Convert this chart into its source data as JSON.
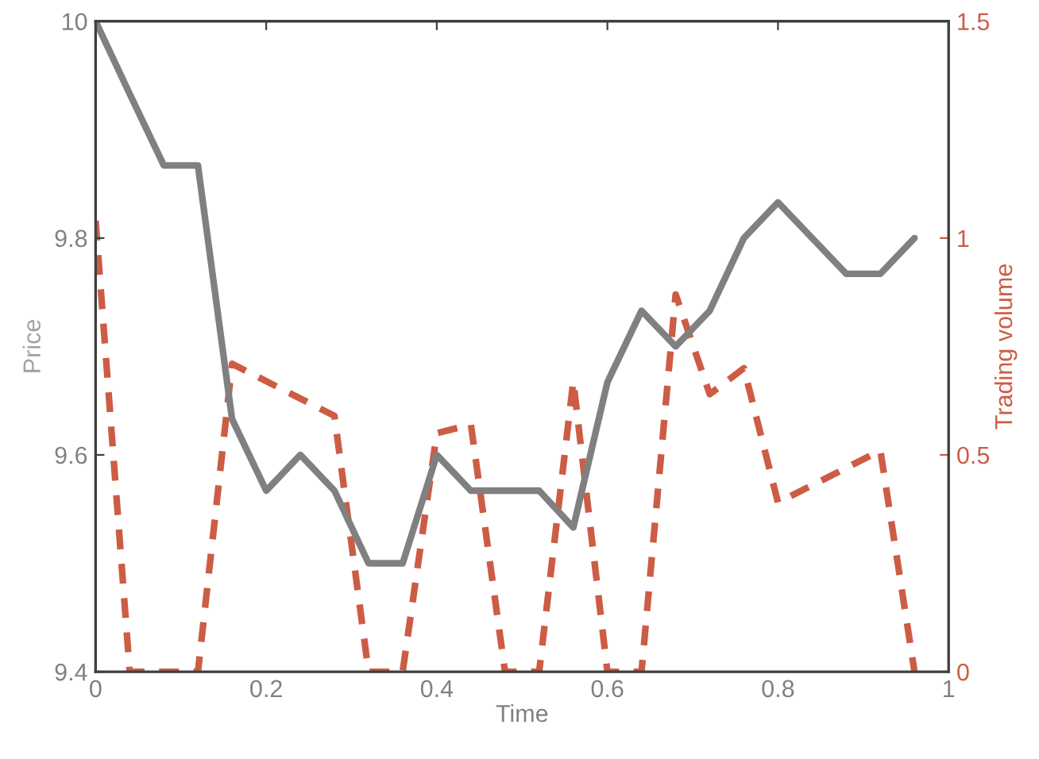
{
  "chart_data": {
    "type": "line",
    "xlabel": "Time",
    "ylabel": "Price",
    "y2label": "Trading volume",
    "x": [
      0,
      0.04,
      0.08,
      0.12,
      0.16,
      0.2,
      0.24,
      0.28,
      0.32,
      0.36,
      0.4,
      0.44,
      0.48,
      0.52,
      0.56,
      0.6,
      0.64,
      0.68,
      0.72,
      0.76,
      0.8,
      0.84,
      0.88,
      0.92,
      0.96
    ],
    "series": [
      {
        "color": "#808080",
        "line_style": "solid",
        "values": [
          10,
          9.933,
          9.867,
          9.867,
          9.633,
          9.567,
          9.6,
          9.567,
          9.5,
          9.5,
          9.6,
          9.567,
          9.567,
          9.567,
          9.533,
          9.667,
          9.733,
          9.7,
          9.733,
          9.8,
          9.833,
          9.8,
          9.767,
          9.767,
          9.8
        ]
      },
      {
        "color": "#cd5c45",
        "line_style": "dashed",
        "axis": "y2",
        "x": [
          0,
          0.04,
          0.12,
          0.16,
          0.28,
          0.32,
          0.36,
          0.4,
          0.44,
          0.48,
          0.52,
          0.56,
          0.6,
          0.64,
          0.68,
          0.72,
          0.76,
          0.8,
          0.92,
          0.96
        ],
        "values": [
          1.04,
          0,
          0,
          0.71,
          0.59,
          0,
          0,
          0.55,
          0.57,
          0,
          0,
          0.67,
          0,
          0,
          0.87,
          0.64,
          0.7,
          0.39,
          0.51,
          0
        ]
      }
    ],
    "xlim": [
      0,
      1
    ],
    "xticks": [
      0,
      0.2,
      0.4,
      0.6,
      0.8,
      1
    ],
    "ylim": [
      9.4,
      10
    ],
    "yticks": [
      9.4,
      9.6,
      9.8,
      10
    ],
    "y2lim": [
      0,
      1.5
    ],
    "y2ticks": [
      0,
      0.5,
      1,
      1.5
    ],
    "grid": false,
    "legend": false,
    "marker": "none"
  }
}
